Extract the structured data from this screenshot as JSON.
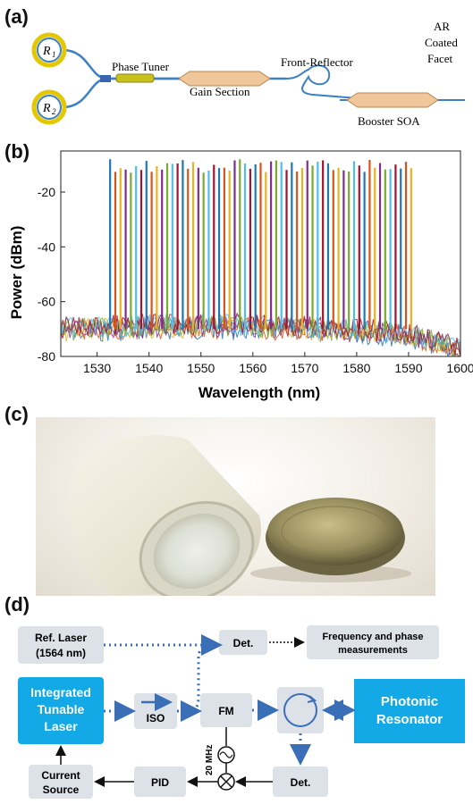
{
  "panels": {
    "a": "(a)",
    "b": "(b)",
    "c": "(c)",
    "d": "(d)"
  },
  "laser_layout": {
    "ring1": "R",
    "ring1_sub": "1",
    "ring2": "R",
    "ring2_sub": "2",
    "phase_tuner": "Phase Tuner",
    "gain_section": "Gain Section",
    "front_reflector": "Front-Reflector",
    "booster": "Booster SOA",
    "facet_line1": "AR",
    "facet_line2": "Coated",
    "facet_line3": "Facet"
  },
  "chart_data": {
    "type": "line",
    "title": "",
    "xlabel": "Wavelength (nm)",
    "ylabel": "Power (dBm)",
    "xlim": [
      1523,
      1600
    ],
    "ylim": [
      -80,
      -5
    ],
    "xticks": [
      1530,
      1540,
      1550,
      1560,
      1570,
      1580,
      1590,
      1600
    ],
    "yticks": [
      -20,
      -40,
      -60,
      -80
    ],
    "peak_wavelengths_start": 1532.5,
    "peak_wavelengths_end": 1590.5,
    "peak_count": 59,
    "peak_power_dbm": -8,
    "noise_floor_dbm": -68,
    "series_colors": [
      "#1f77b4",
      "#d95319",
      "#edb120",
      "#7e2f8e",
      "#77ac30",
      "#4dbeee",
      "#a2142f"
    ]
  },
  "photo": {
    "description_icon": "resonator-cylinder-and-coin"
  },
  "block_diagram": {
    "ref_laser_line1": "Ref. Laser",
    "ref_laser_line2": "(1564 nm)",
    "det_top": "Det.",
    "freq_line1": "Frequency and phase",
    "freq_line2": "measurements",
    "itl_line1": "Integrated",
    "itl_line2": "Tunable",
    "itl_line3": "Laser",
    "iso": "ISO",
    "fm": "FM",
    "photonic_line1": "Photonic",
    "photonic_line2": "Resonator",
    "rf_freq": "20 MHz",
    "current_line1": "Current",
    "current_line2": "Source",
    "pid": "PID",
    "det_bottom": "Det.",
    "colors": {
      "accent": "#12a9e6",
      "box": "#dde1e8",
      "dotted": "#3a6fb8"
    }
  }
}
